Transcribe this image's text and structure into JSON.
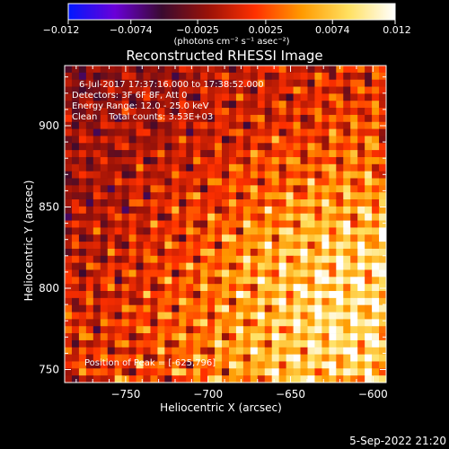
{
  "chart_data": {
    "type": "heatmap",
    "title": "Reconstructed RHESSI Image",
    "xlabel": "Heliocentric X (arcsec)",
    "ylabel": "Heliocentric Y (arcsec)",
    "xlim": [
      -787,
      -592
    ],
    "ylim": [
      742,
      937
    ],
    "x_ticks": [
      -750,
      -700,
      -650,
      -600
    ],
    "x_tick_labels": [
      "−750",
      "−700",
      "−650",
      "−600"
    ],
    "y_ticks": [
      750,
      800,
      850,
      900
    ],
    "y_tick_labels": [
      "750",
      "800",
      "850",
      "900"
    ],
    "colorbar": {
      "min": -0.012,
      "max": 0.012,
      "ticks": [
        -0.012,
        -0.0074,
        -0.0025,
        0.0025,
        0.0074,
        0.012
      ],
      "tick_labels": [
        "−0.012",
        "−0.0074",
        "−0.0025",
        "0.0025",
        "0.0074",
        "0.012"
      ],
      "unit_label": "(photons cm⁻² s⁻¹ asec⁻²)",
      "colormap": [
        "#0018ff",
        "#6a00d8",
        "#3a0a30",
        "#9a1208",
        "#ff3000",
        "#ff9a00",
        "#ffe060",
        "#ffffff"
      ]
    },
    "annotations": [
      "6-Jul-2017 17:37:16.000 to 17:38:52.000",
      "Detectors: 3F 6F 8F, Att 0",
      "Energy Range: 12.0 - 25.0 keV",
      "Clean    Total counts: 3.53E+03"
    ],
    "peak_label": "Position of Peak = [-625,796]",
    "peak": {
      "x": -625,
      "y": 796
    },
    "grid": false
  },
  "footer": {
    "timestamp": "5-Sep-2022 21:20"
  }
}
